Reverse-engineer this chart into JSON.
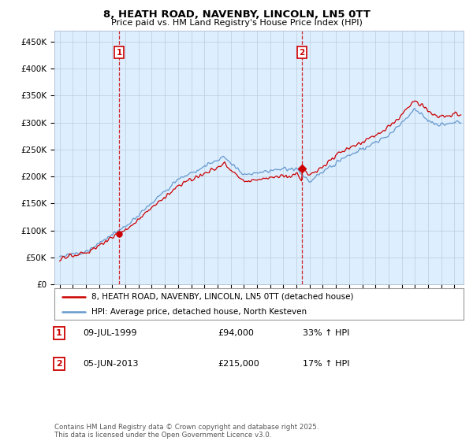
{
  "title": "8, HEATH ROAD, NAVENBY, LINCOLN, LN5 0TT",
  "subtitle": "Price paid vs. HM Land Registry's House Price Index (HPI)",
  "red_label": "8, HEATH ROAD, NAVENBY, LINCOLN, LN5 0TT (detached house)",
  "blue_label": "HPI: Average price, detached house, North Kesteven",
  "annotation1_date": "09-JUL-1999",
  "annotation1_price": "£94,000",
  "annotation1_hpi": "33% ↑ HPI",
  "annotation2_date": "05-JUN-2013",
  "annotation2_price": "£215,000",
  "annotation2_hpi": "17% ↑ HPI",
  "footer": "Contains HM Land Registry data © Crown copyright and database right 2025.\nThis data is licensed under the Open Government Licence v3.0.",
  "ylim": [
    0,
    470000
  ],
  "yticks": [
    0,
    50000,
    100000,
    150000,
    200000,
    250000,
    300000,
    350000,
    400000,
    450000
  ],
  "ytick_labels": [
    "£0",
    "£50K",
    "£100K",
    "£150K",
    "£200K",
    "£250K",
    "£300K",
    "£350K",
    "£400K",
    "£450K"
  ],
  "red_color": "#cc0000",
  "blue_color": "#6699cc",
  "dashed_color": "#cc0000",
  "plot_bg_color": "#ddeeff",
  "background_color": "#ffffff",
  "sale1_year": 1999.52,
  "sale1_price": 94000,
  "sale2_year": 2013.43,
  "sale2_price": 215000
}
